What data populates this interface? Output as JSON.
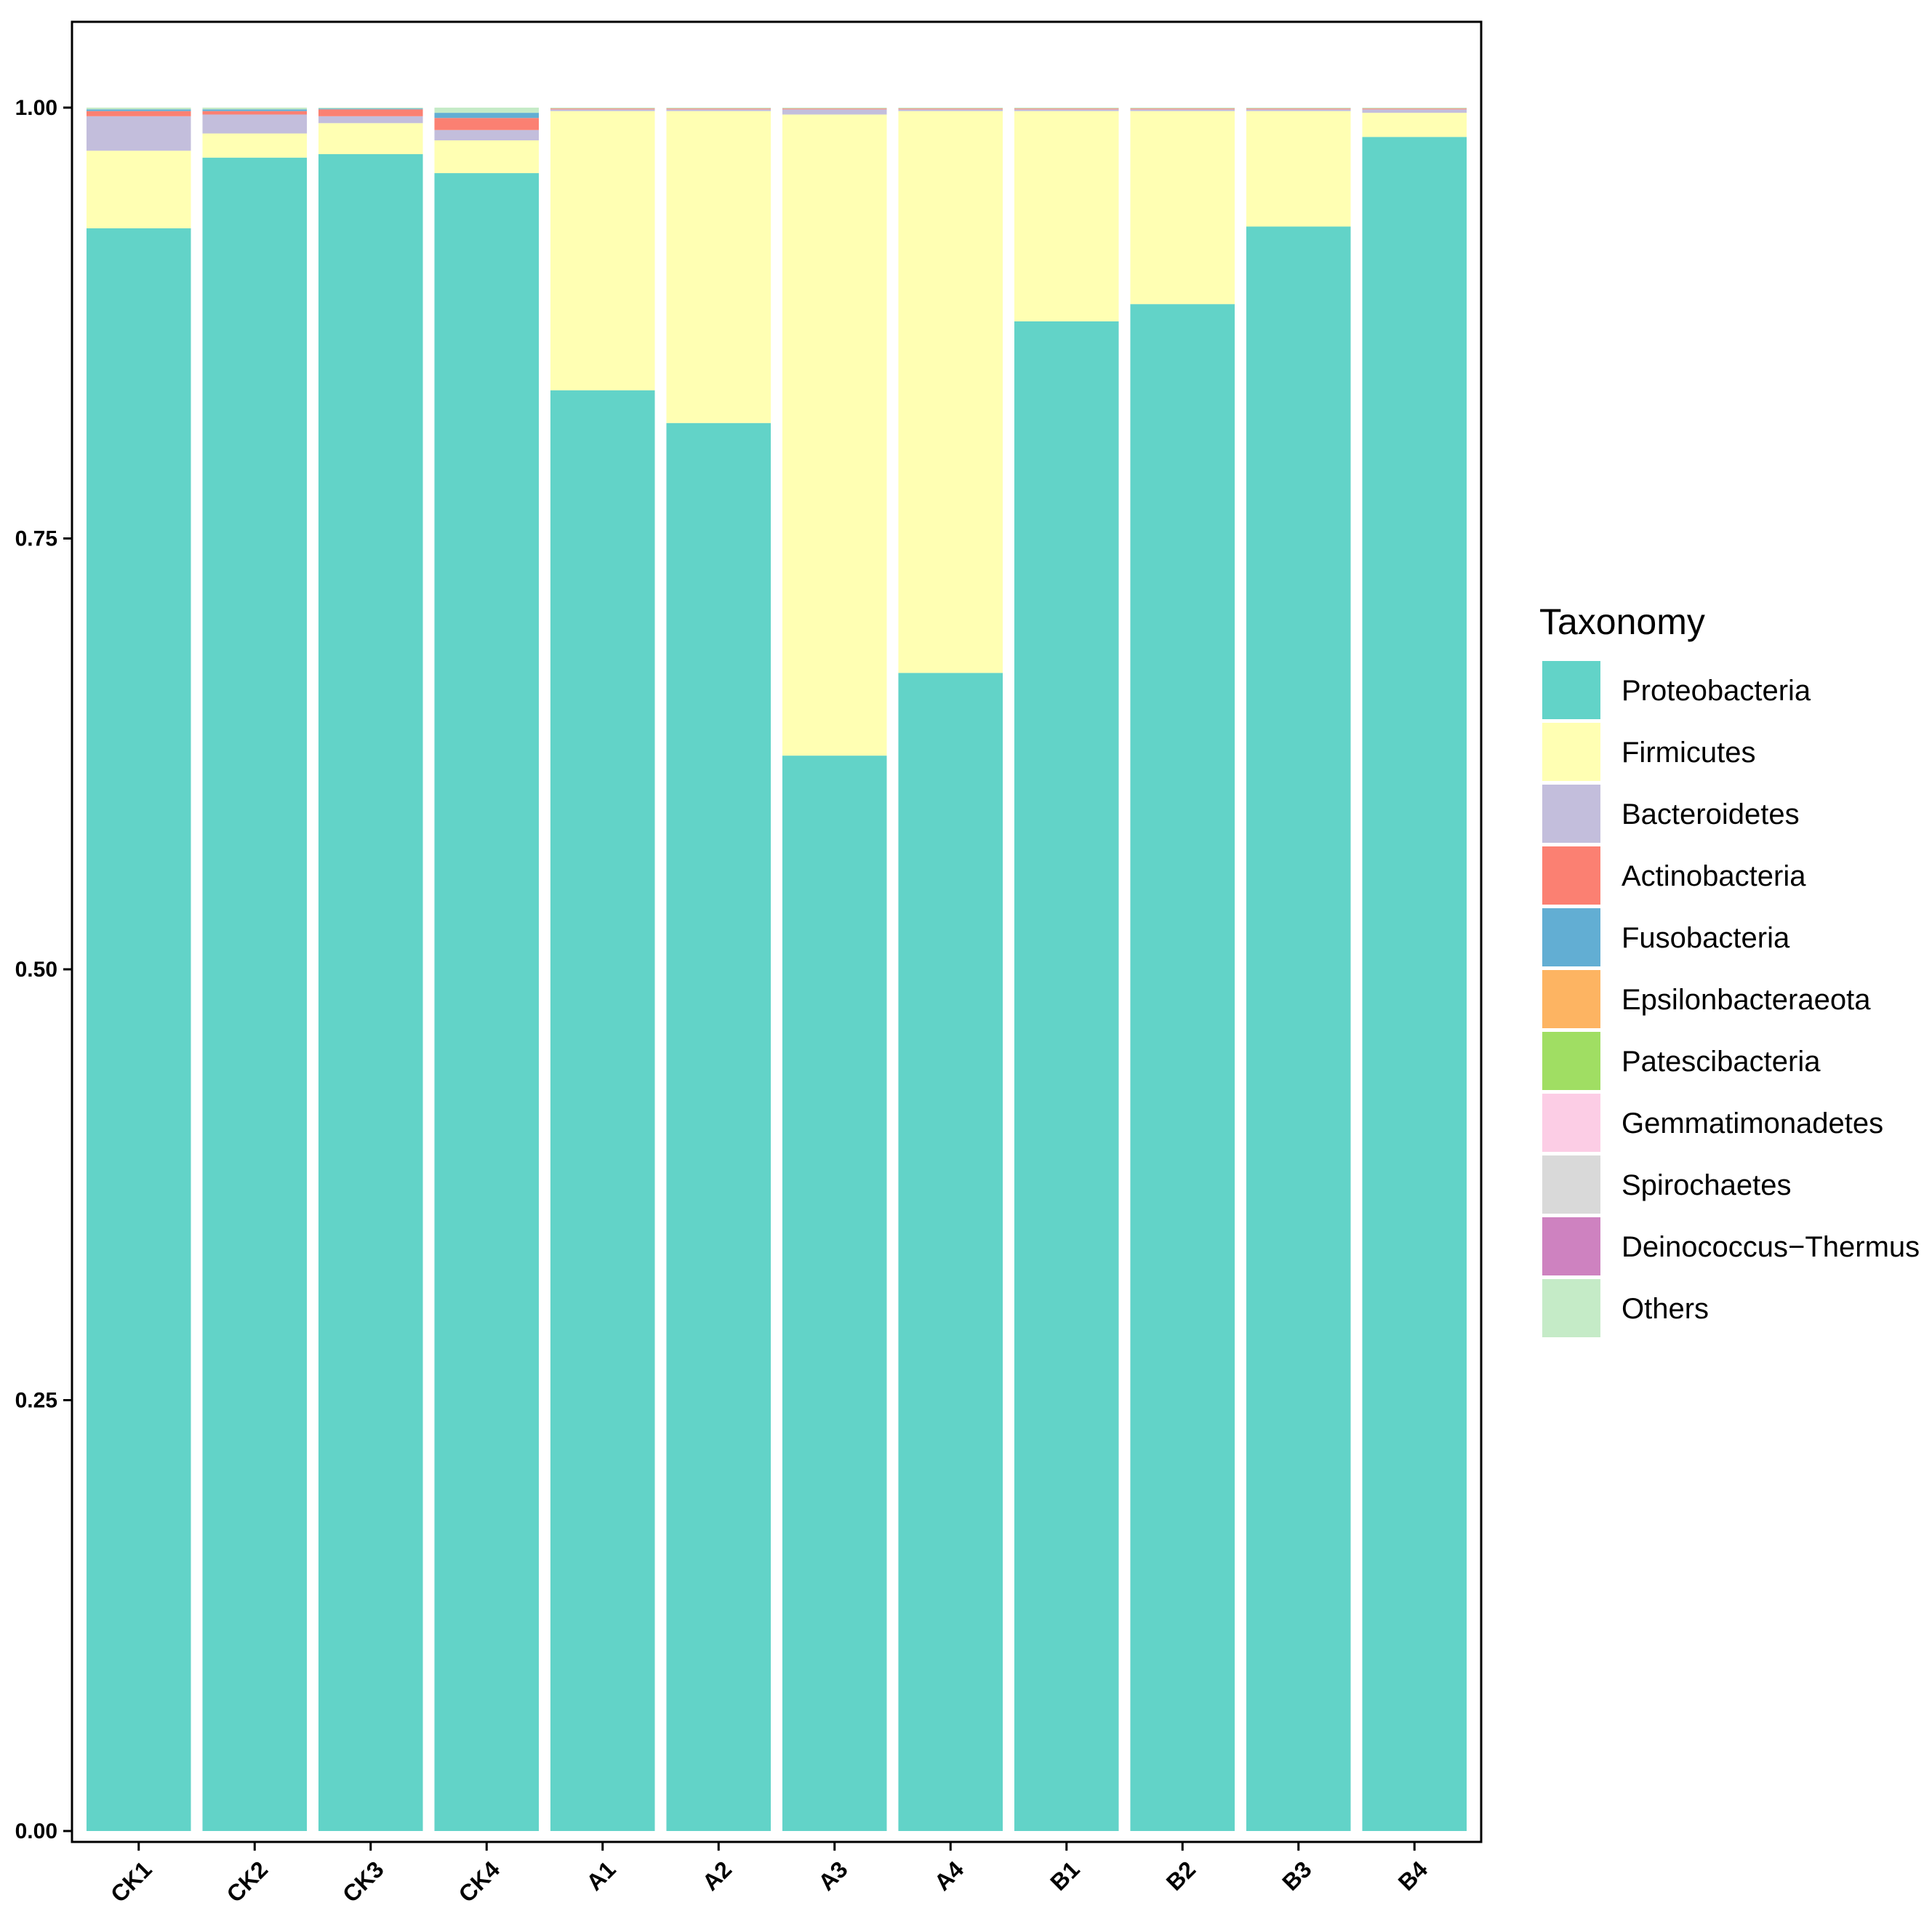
{
  "chart_data": {
    "type": "bar",
    "stacked": true,
    "categories": [
      "CK1",
      "CK2",
      "CK3",
      "CK4",
      "A1",
      "A2",
      "A3",
      "A4",
      "B1",
      "B2",
      "B3",
      "B4"
    ],
    "ylim": [
      0,
      1.05
    ],
    "yticks": [
      "0.00",
      "0.25",
      "0.50",
      "0.75",
      "1.00"
    ],
    "xlabel": "",
    "ylabel": "",
    "grid": false,
    "legend": {
      "title": "Taxonomy",
      "position": "right"
    },
    "series": [
      {
        "name": "Proteobacteria",
        "color": "#62D3C8",
        "values": [
          0.93,
          0.971,
          0.973,
          0.962,
          0.836,
          0.817,
          0.624,
          0.672,
          0.876,
          0.886,
          0.931,
          0.983
        ]
      },
      {
        "name": "Firmicutes",
        "color": "#FFFFB3",
        "values": [
          0.045,
          0.014,
          0.018,
          0.019,
          0.162,
          0.181,
          0.372,
          0.326,
          0.122,
          0.112,
          0.067,
          0.014
        ]
      },
      {
        "name": "Bacteroidetes",
        "color": "#C3BEDC",
        "values": [
          0.02,
          0.011,
          0.004,
          0.006,
          0.001,
          0.001,
          0.003,
          0.001,
          0.001,
          0.001,
          0.001,
          0.002
        ]
      },
      {
        "name": "Actinobacteria",
        "color": "#FB8072",
        "values": [
          0.003,
          0.002,
          0.004,
          0.007,
          0.0005,
          0.0005,
          0.0005,
          0.0005,
          0.0005,
          0.0005,
          0.0005,
          0.0005
        ]
      },
      {
        "name": "Fusobacteria",
        "color": "#62AED3",
        "values": [
          0.001,
          0.001,
          0.0005,
          0.003,
          0.0,
          0.0,
          0.0,
          0.0,
          0.0,
          0.0,
          0.0,
          0.0
        ]
      },
      {
        "name": "Epsilonbacteraeota",
        "color": "#FDB462",
        "values": [
          0.0,
          0.0,
          0.0,
          0.0,
          0.0,
          0.0,
          0.0,
          0.0,
          0.0,
          0.0,
          0.0,
          0.0
        ]
      },
      {
        "name": "Patescibacteria",
        "color": "#A0DE63",
        "values": [
          0.0,
          0.0,
          0.0,
          0.0,
          0.0,
          0.0,
          0.0,
          0.0,
          0.0,
          0.0,
          0.0,
          0.0
        ]
      },
      {
        "name": "Gemmatimonadetes",
        "color": "#FCCDE5",
        "values": [
          0.0,
          0.0,
          0.0,
          0.0,
          0.0,
          0.0,
          0.0,
          0.0,
          0.0,
          0.0,
          0.0,
          0.0
        ]
      },
      {
        "name": "Spirochaetes",
        "color": "#D9D9D9",
        "values": [
          0.0,
          0.0,
          0.0,
          0.0,
          0.0,
          0.0,
          0.0,
          0.0,
          0.0,
          0.0,
          0.0,
          0.0
        ]
      },
      {
        "name": "Deinococcus−Thermus",
        "color": "#CE82C0",
        "values": [
          0.0,
          0.0,
          0.0,
          0.0,
          0.0,
          0.0,
          0.0,
          0.0,
          0.0,
          0.0,
          0.0,
          0.0
        ]
      },
      {
        "name": "Others",
        "color": "#C5EBC7",
        "values": [
          0.001,
          0.001,
          0.0005,
          0.003,
          0.0005,
          0.0005,
          0.0005,
          0.0005,
          0.0005,
          0.0005,
          0.0005,
          0.0005
        ]
      }
    ]
  }
}
